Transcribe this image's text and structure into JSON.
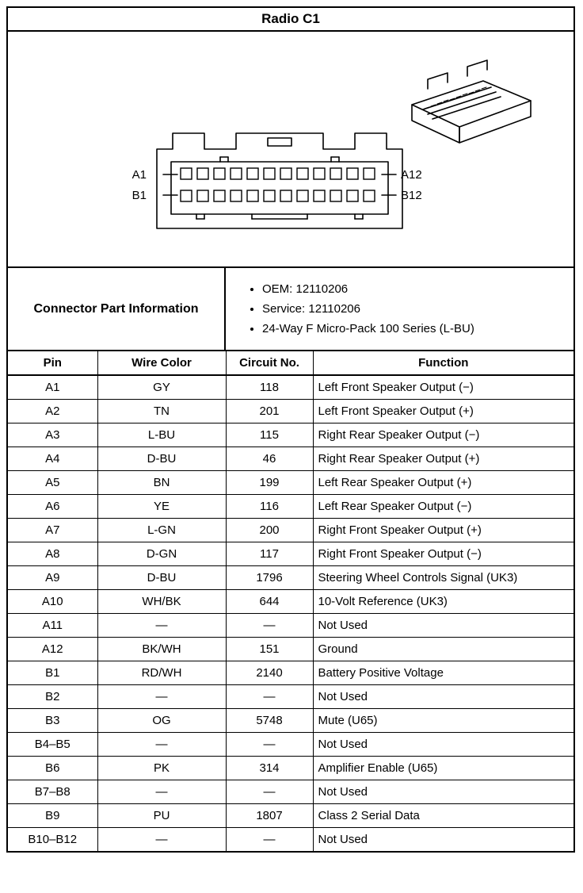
{
  "title": "Radio C1",
  "diagram": {
    "labels": {
      "a1": "A1",
      "a12": "A12",
      "b1": "B1",
      "b12": "B12"
    },
    "stroke": "#000000",
    "stroke_width": 1.6
  },
  "connector_info": {
    "label": "Connector Part Information",
    "items": [
      "OEM: 12110206",
      "Service: 12110206",
      "24-Way F Micro-Pack 100 Series (L-BU)"
    ]
  },
  "table": {
    "headers": [
      "Pin",
      "Wire Color",
      "Circuit No.",
      "Function"
    ],
    "rows": [
      [
        "A1",
        "GY",
        "118",
        "Left Front Speaker Output (−)"
      ],
      [
        "A2",
        "TN",
        "201",
        "Left Front Speaker Output (+)"
      ],
      [
        "A3",
        "L-BU",
        "115",
        "Right Rear Speaker Output (−)"
      ],
      [
        "A4",
        "D-BU",
        "46",
        "Right Rear Speaker Output (+)"
      ],
      [
        "A5",
        "BN",
        "199",
        "Left Rear Speaker Output (+)"
      ],
      [
        "A6",
        "YE",
        "116",
        "Left Rear Speaker Output (−)"
      ],
      [
        "A7",
        "L-GN",
        "200",
        "Right Front Speaker Output (+)"
      ],
      [
        "A8",
        "D-GN",
        "117",
        "Right Front Speaker Output (−)"
      ],
      [
        "A9",
        "D-BU",
        "1796",
        "Steering Wheel Controls Signal (UK3)"
      ],
      [
        "A10",
        "WH/BK",
        "644",
        "10-Volt Reference (UK3)"
      ],
      [
        "A11",
        "—",
        "—",
        "Not Used"
      ],
      [
        "A12",
        "BK/WH",
        "151",
        "Ground"
      ],
      [
        "B1",
        "RD/WH",
        "2140",
        "Battery Positive Voltage"
      ],
      [
        "B2",
        "—",
        "—",
        "Not Used"
      ],
      [
        "B3",
        "OG",
        "5748",
        "Mute (U65)"
      ],
      [
        "B4–B5",
        "—",
        "—",
        "Not Used"
      ],
      [
        "B6",
        "PK",
        "314",
        "Amplifier Enable (U65)"
      ],
      [
        "B7–B8",
        "—",
        "—",
        "Not Used"
      ],
      [
        "B9",
        "PU",
        "1807",
        "Class 2 Serial Data"
      ],
      [
        "B10–B12",
        "—",
        "—",
        "Not Used"
      ]
    ]
  },
  "style": {
    "font_family": "Arial",
    "border_color": "#000000",
    "background": "#ffffff",
    "header_fontsize": 15,
    "body_fontsize": 15,
    "title_fontsize": 17
  }
}
